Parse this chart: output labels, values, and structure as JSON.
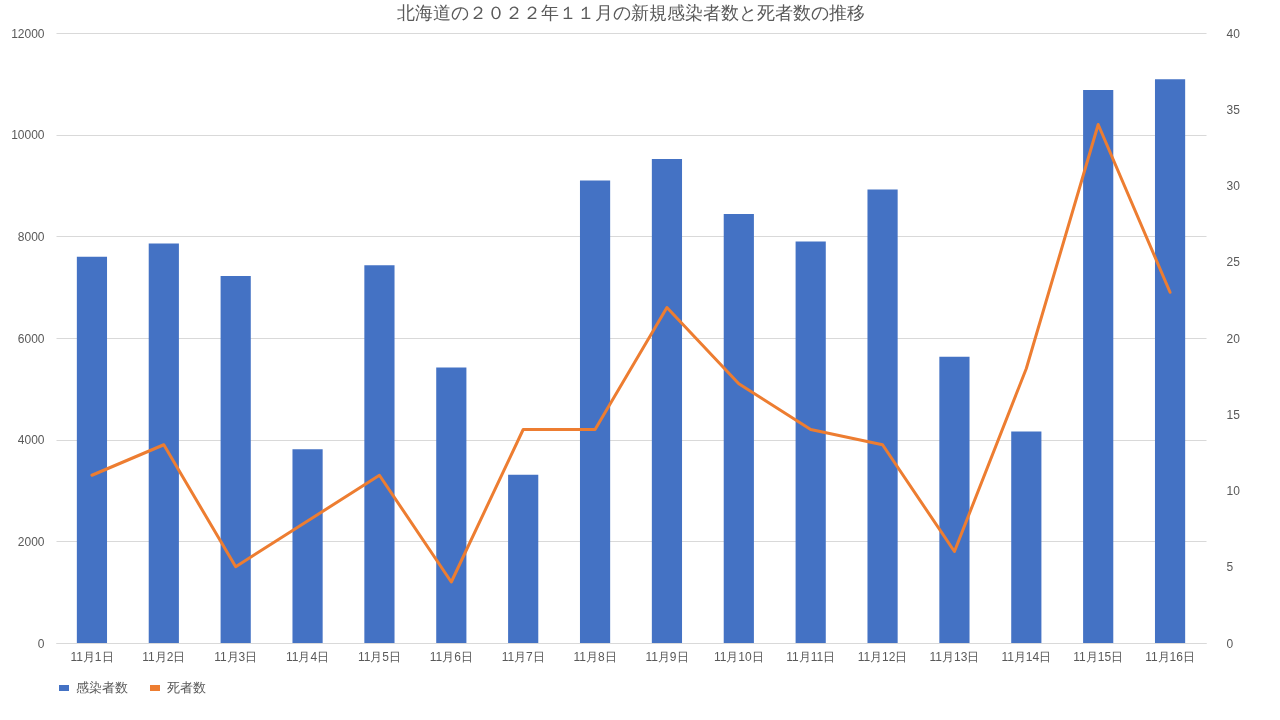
{
  "chart_data": {
    "type": "bar",
    "title": "北海道の２０２２年１１月の新規感染者数と死者数の推移",
    "categories": [
      "11月1日",
      "11月2日",
      "11月3日",
      "11月4日",
      "11月5日",
      "11月6日",
      "11月7日",
      "11月8日",
      "11月9日",
      "11月10日",
      "11月11日",
      "11月12日",
      "11月13日",
      "11月14日",
      "11月15日",
      "11月16日"
    ],
    "series": [
      {
        "name": "感染者数",
        "color": "#4472c4",
        "values": [
          7600,
          7860,
          7220,
          3810,
          7430,
          5420,
          3310,
          9100,
          9520,
          8440,
          7900,
          8920,
          5630,
          4160,
          10880,
          11090
        ]
      },
      {
        "name": "死者数",
        "type": "line",
        "axis": "y2",
        "color": "#ed7d31",
        "values": [
          11,
          13,
          5,
          8,
          11,
          4,
          14,
          14,
          22,
          17,
          14,
          13,
          6,
          18,
          34,
          23
        ]
      }
    ],
    "ylim": [
      0,
      12000
    ],
    "yticks": [
      0,
      2000,
      4000,
      6000,
      8000,
      10000,
      12000
    ],
    "y2lim": [
      0,
      40
    ],
    "y2ticks": [
      0,
      5,
      10,
      15,
      20,
      25,
      30,
      35,
      40
    ],
    "grid": "y",
    "legend": "bottom"
  }
}
